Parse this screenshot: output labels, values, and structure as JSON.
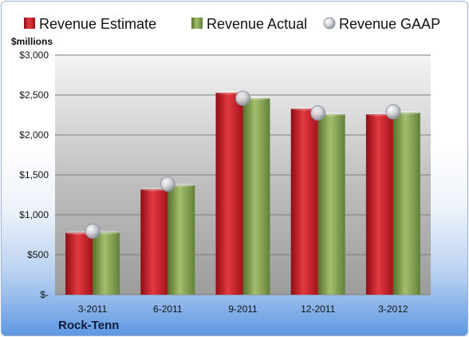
{
  "chart_data": {
    "type": "bar",
    "title": "",
    "unit_label": "$millions",
    "company": "Rock-Tenn",
    "categories": [
      "3-2011",
      "6-2011",
      "9-2011",
      "12-2011",
      "3-2012"
    ],
    "series": [
      {
        "name": "Revenue Estimate",
        "kind": "bar",
        "color": "#c8202b",
        "values": [
          775,
          1320,
          2530,
          2330,
          2260
        ]
      },
      {
        "name": "Revenue Actual",
        "kind": "bar",
        "color": "#89a654",
        "values": [
          780,
          1370,
          2460,
          2260,
          2280
        ]
      },
      {
        "name": "Revenue GAAP",
        "kind": "marker",
        "color": "#c9ccd2",
        "values": [
          795,
          1385,
          2460,
          2275,
          2290
        ]
      }
    ],
    "yaxis": {
      "min": 0,
      "max": 3000,
      "ticks": [
        0,
        500,
        1000,
        1500,
        2000,
        2500,
        3000
      ],
      "tick_labels": [
        "$-",
        "$500",
        "$1,000",
        "$1,500",
        "$2,000",
        "$2,500",
        "$3,000"
      ]
    },
    "grid": true,
    "legend_position": "top"
  }
}
